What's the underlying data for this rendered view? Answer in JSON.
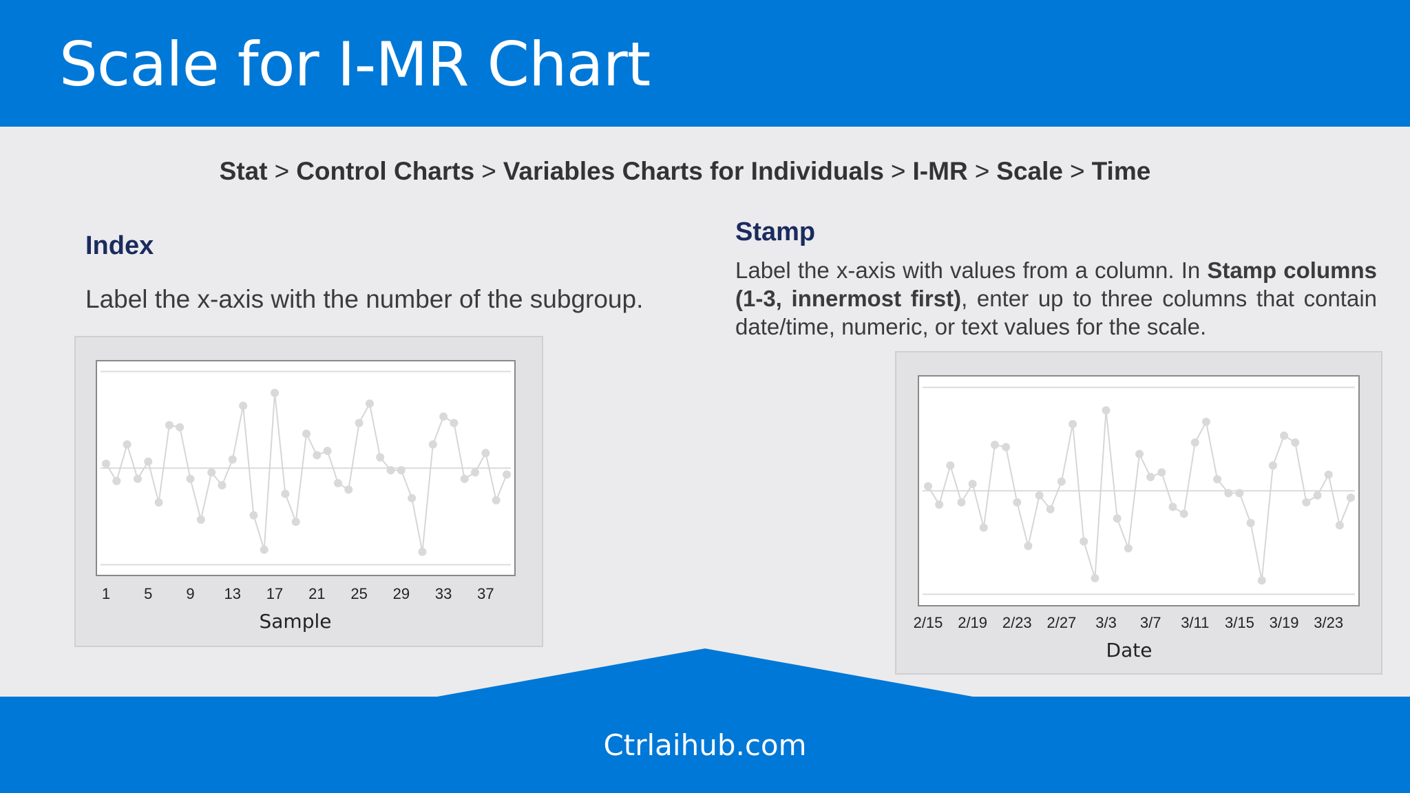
{
  "header": {
    "title": "Scale for I-MR Chart"
  },
  "breadcrumb": {
    "items": [
      "Stat",
      "Control Charts",
      "Variables Charts for Individuals",
      "I-MR",
      "Scale",
      "Time"
    ],
    "separator": ">"
  },
  "index_section": {
    "heading": "Index",
    "description": "Label the x-axis with the number of the subgroup."
  },
  "stamp_section": {
    "heading": "Stamp",
    "description_part1": "Label the x-axis with values from a column. In ",
    "description_bold": "Stamp columns (1-3, innermost first)",
    "description_part2": ", enter up to three columns that contain date/time, numeric, or text values for the scale."
  },
  "colors": {
    "accent": "#0078d7",
    "background": "#ebebed",
    "heading": "#1a2b5e",
    "data_line": "#d6d6d6"
  },
  "chart_data": [
    {
      "type": "line",
      "xlabel": "Sample",
      "tick_labels": [
        "1",
        "5",
        "9",
        "13",
        "17",
        "21",
        "25",
        "29",
        "33",
        "37"
      ],
      "ylim": [
        0,
        100
      ],
      "center_line": 50,
      "upper_limit": 95,
      "lower_limit": 5,
      "values": [
        52,
        44,
        61,
        45,
        53,
        34,
        70,
        69,
        45,
        26,
        48,
        42,
        54,
        79,
        28,
        12,
        85,
        38,
        25,
        66,
        56,
        58,
        43,
        40,
        71,
        80,
        55,
        49,
        49,
        36,
        11,
        61,
        74,
        71,
        45,
        48,
        57,
        35,
        47
      ]
    },
    {
      "type": "line",
      "xlabel": "Date",
      "tick_labels": [
        "2/15",
        "2/19",
        "2/23",
        "2/27",
        "3/3",
        "3/7",
        "3/11",
        "3/15",
        "3/19",
        "3/23"
      ],
      "ylim": [
        0,
        100
      ],
      "center_line": 50,
      "upper_limit": 95,
      "lower_limit": 5,
      "values": [
        52,
        44,
        61,
        45,
        53,
        34,
        70,
        69,
        45,
        26,
        48,
        42,
        54,
        79,
        28,
        12,
        85,
        38,
        25,
        66,
        56,
        58,
        43,
        40,
        71,
        80,
        55,
        49,
        49,
        36,
        11,
        61,
        74,
        71,
        45,
        48,
        57,
        35,
        47
      ]
    }
  ],
  "footer": {
    "text": "Ctrlaihub.com"
  }
}
